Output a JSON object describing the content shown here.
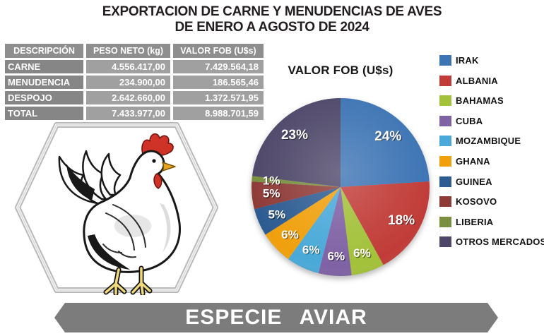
{
  "header": {
    "line1": "EXPORTACION DE CARNE Y MENUDENCIAS DE AVES",
    "line2": "DE ENERO A AGOSTO DE 2024"
  },
  "banner": {
    "label": "ESPECIE AVIAR"
  },
  "theme": {
    "background": "#ffffff",
    "title_color": "#221d1e",
    "table_header_bg": "#8e8e8e",
    "table_label_bg": "#868686",
    "table_value_bg": "#a0a0a0",
    "table_text": "#ffffff",
    "banner_bg": "#7c7c7c",
    "banner_text": "#ffffff",
    "legend_text": "#111111"
  },
  "icons": {
    "chicken": "chicken-illustration",
    "hexagon": "hexagon-frame"
  },
  "chart_data": [
    {
      "type": "table",
      "columns": [
        "DESCRIPCIÓN",
        "PESO NETO (kg)",
        "VALOR FOB (U$s)"
      ],
      "rows": [
        [
          "CARNE",
          "4.556.417,00",
          "7.429.564,18"
        ],
        [
          "MENUDENCIA",
          "234.900,00",
          "186.565,46"
        ],
        [
          "DESPOJO",
          "2.642.660,00",
          "1.372.571,95"
        ],
        [
          "TOTAL",
          "7.433.977,00",
          "8.988.701,59"
        ]
      ]
    },
    {
      "type": "pie",
      "title": "VALOR FOB (U$s)",
      "labels": [
        "IRAK",
        "ALBANIA",
        "BAHAMAS",
        "CUBA",
        "MOZAMBIQUE",
        "GHANA",
        "GUINEA",
        "KOSOVO",
        "LIBERIA",
        "OTROS MERCADOS"
      ],
      "values": [
        24,
        18,
        6,
        6,
        6,
        6,
        5,
        5,
        1,
        23
      ],
      "data_labels": [
        "24%",
        "18%",
        "6%",
        "6%",
        "6%",
        "6%",
        "5%",
        "5%",
        "1%",
        "23%"
      ],
      "colors": [
        "#3d74b4",
        "#c13c38",
        "#a3c13a",
        "#7f62a4",
        "#4aa9d8",
        "#f0a00d",
        "#2d5c92",
        "#8e3b38",
        "#7a8f3f",
        "#4e4769"
      ],
      "unit": "percent",
      "start_angle_deg": 0,
      "direction": "clockwise",
      "legend_position": "right"
    }
  ]
}
